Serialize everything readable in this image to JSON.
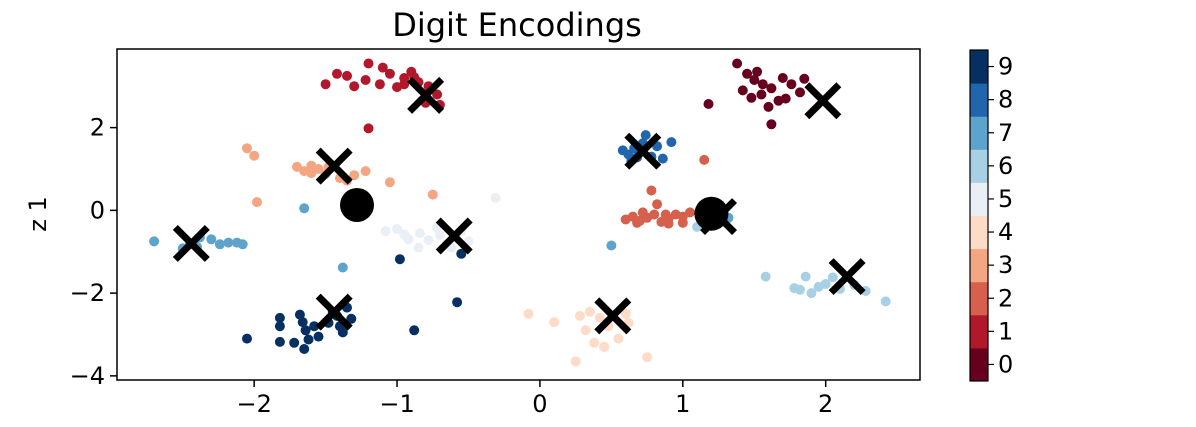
{
  "chart_data": {
    "type": "scatter",
    "title": "Digit Encodings",
    "xlabel": "",
    "ylabel": "z 1",
    "xlim": [
      -2.96,
      2.66
    ],
    "ylim": [
      -4.1,
      3.9
    ],
    "xticks": [
      -2,
      -1,
      0,
      1,
      2
    ],
    "yticks": [
      -4,
      -2,
      0,
      2
    ],
    "grid": false,
    "colorbar": {
      "ticks": [
        0,
        1,
        2,
        3,
        4,
        5,
        6,
        7,
        8,
        9
      ],
      "colors": [
        "#67001f",
        "#b2182b",
        "#d6604d",
        "#f4a582",
        "#fddbc7",
        "#e9eff4",
        "#a8d0e4",
        "#5ea3cc",
        "#2166ac",
        "#053061"
      ]
    },
    "series": [
      {
        "digit": 0,
        "points": [
          [
            1.38,
            3.55
          ],
          [
            1.45,
            3.3
          ],
          [
            1.5,
            3.15
          ],
          [
            1.56,
            3.05
          ],
          [
            1.62,
            2.95
          ],
          [
            1.7,
            3.2
          ],
          [
            1.76,
            3.05
          ],
          [
            1.82,
            2.85
          ],
          [
            1.67,
            2.65
          ],
          [
            1.6,
            2.5
          ],
          [
            1.48,
            2.72
          ],
          [
            1.42,
            2.9
          ],
          [
            1.55,
            2.8
          ],
          [
            1.72,
            2.7
          ],
          [
            1.85,
            3.18
          ],
          [
            1.62,
            2.08
          ],
          [
            1.18,
            2.57
          ],
          [
            1.52,
            3.35
          ]
        ]
      },
      {
        "digit": 1,
        "points": [
          [
            -1.5,
            3.05
          ],
          [
            -1.35,
            3.25
          ],
          [
            -1.2,
            3.55
          ],
          [
            -1.1,
            3.45
          ],
          [
            -1.05,
            3.3
          ],
          [
            -0.95,
            3.2
          ],
          [
            -0.9,
            3.35
          ],
          [
            -0.85,
            3.1
          ],
          [
            -0.78,
            3.0
          ],
          [
            -0.72,
            2.8
          ],
          [
            -0.7,
            2.55
          ],
          [
            -1.22,
            3.15
          ],
          [
            -1.0,
            2.98
          ],
          [
            -0.8,
            2.6
          ],
          [
            -1.42,
            3.3
          ],
          [
            -1.3,
            3.0
          ],
          [
            -1.2,
            1.98
          ],
          [
            -1.12,
            3.05
          ],
          [
            -0.95,
            3.05
          ],
          [
            -0.88,
            3.22
          ]
        ]
      },
      {
        "digit": 2,
        "points": [
          [
            0.6,
            -0.22
          ],
          [
            0.65,
            -0.15
          ],
          [
            0.7,
            -0.25
          ],
          [
            0.75,
            -0.18
          ],
          [
            0.8,
            -0.1
          ],
          [
            0.85,
            -0.28
          ],
          [
            0.9,
            -0.2
          ],
          [
            0.95,
            -0.1
          ],
          [
            1.0,
            -0.15
          ],
          [
            1.05,
            -0.05
          ],
          [
            0.78,
            0.48
          ],
          [
            0.82,
            0.15
          ],
          [
            0.9,
            -0.32
          ],
          [
            1.0,
            -0.3
          ],
          [
            0.72,
            -0.05
          ],
          [
            1.15,
            1.22
          ],
          [
            0.68,
            -0.3
          ],
          [
            0.88,
            -0.1
          ]
        ]
      },
      {
        "digit": 3,
        "points": [
          [
            -2.05,
            1.5
          ],
          [
            -2.0,
            1.32
          ],
          [
            -1.98,
            0.2
          ],
          [
            -1.7,
            1.05
          ],
          [
            -1.65,
            0.95
          ],
          [
            -1.6,
            1.08
          ],
          [
            -1.55,
            1.0
          ],
          [
            -1.5,
            0.88
          ],
          [
            -1.4,
            0.78
          ],
          [
            -1.3,
            0.85
          ],
          [
            -1.22,
            0.95
          ],
          [
            -1.35,
            0.72
          ],
          [
            -1.48,
            1.05
          ],
          [
            -1.05,
            0.68
          ],
          [
            -0.75,
            0.38
          ],
          [
            -1.6,
            0.9
          ]
        ]
      },
      {
        "digit": 4,
        "points": [
          [
            -0.08,
            -2.5
          ],
          [
            0.1,
            -2.7
          ],
          [
            0.25,
            -3.65
          ],
          [
            0.28,
            -2.55
          ],
          [
            0.32,
            -2.9
          ],
          [
            0.38,
            -3.2
          ],
          [
            0.42,
            -2.6
          ],
          [
            0.48,
            -2.8
          ],
          [
            0.55,
            -3.1
          ],
          [
            0.62,
            -2.72
          ],
          [
            0.75,
            -3.55
          ],
          [
            0.35,
            -2.45
          ],
          [
            0.45,
            -3.3
          ],
          [
            0.6,
            -2.5
          ]
        ]
      },
      {
        "digit": 5,
        "points": [
          [
            -1.08,
            -0.5
          ],
          [
            -1.0,
            -0.45
          ],
          [
            -0.92,
            -0.7
          ],
          [
            -0.84,
            -0.55
          ],
          [
            -0.78,
            -0.72
          ],
          [
            -0.7,
            -0.6
          ],
          [
            -0.65,
            -0.8
          ],
          [
            -0.6,
            -0.68
          ],
          [
            -0.55,
            -0.5
          ],
          [
            -0.31,
            0.3
          ],
          [
            -0.72,
            -0.42
          ],
          [
            -0.62,
            -0.9
          ],
          [
            -0.85,
            -0.9
          ],
          [
            -0.5,
            -0.75
          ],
          [
            -0.95,
            -0.58
          ]
        ]
      },
      {
        "digit": 6,
        "points": [
          [
            1.58,
            -1.6
          ],
          [
            1.78,
            -1.88
          ],
          [
            1.82,
            -1.92
          ],
          [
            1.86,
            -1.6
          ],
          [
            1.9,
            -2.0
          ],
          [
            1.95,
            -1.85
          ],
          [
            2.0,
            -1.78
          ],
          [
            2.1,
            -1.9
          ],
          [
            2.2,
            -1.8
          ],
          [
            2.28,
            -1.95
          ],
          [
            2.42,
            -2.2
          ],
          [
            1.1,
            -0.4
          ],
          [
            2.05,
            -1.62
          ]
        ]
      },
      {
        "digit": 7,
        "points": [
          [
            -2.7,
            -0.75
          ],
          [
            -2.5,
            -0.92
          ],
          [
            -2.45,
            -0.82
          ],
          [
            -2.38,
            -0.65
          ],
          [
            -2.3,
            -0.7
          ],
          [
            -2.24,
            -0.82
          ],
          [
            -2.18,
            -0.78
          ],
          [
            -2.12,
            -0.78
          ],
          [
            -2.08,
            -0.82
          ],
          [
            -2.4,
            -0.88
          ],
          [
            -1.38,
            -1.38
          ],
          [
            -1.65,
            0.05
          ],
          [
            0.5,
            -0.85
          ],
          [
            1.32,
            -0.18
          ]
        ]
      },
      {
        "digit": 8,
        "points": [
          [
            0.58,
            1.45
          ],
          [
            0.62,
            1.35
          ],
          [
            0.66,
            1.5
          ],
          [
            0.7,
            1.4
          ],
          [
            0.74,
            1.82
          ],
          [
            0.78,
            1.3
          ],
          [
            0.82,
            1.55
          ],
          [
            0.86,
            1.25
          ],
          [
            0.92,
            1.65
          ],
          [
            0.64,
            1.2
          ],
          [
            0.72,
            1.62
          ],
          [
            0.68,
            1.28
          ]
        ]
      },
      {
        "digit": 9,
        "points": [
          [
            -2.05,
            -3.1
          ],
          [
            -1.82,
            -2.6
          ],
          [
            -1.82,
            -2.8
          ],
          [
            -1.82,
            -3.18
          ],
          [
            -1.72,
            -3.2
          ],
          [
            -1.68,
            -2.52
          ],
          [
            -1.66,
            -2.7
          ],
          [
            -1.64,
            -2.9
          ],
          [
            -1.62,
            -3.12
          ],
          [
            -1.65,
            -3.35
          ],
          [
            -1.58,
            -2.8
          ],
          [
            -1.55,
            -3.05
          ],
          [
            -1.48,
            -2.72
          ],
          [
            -1.45,
            -2.45
          ],
          [
            -1.42,
            -2.55
          ],
          [
            -1.4,
            -2.8
          ],
          [
            -1.38,
            -2.95
          ],
          [
            -1.35,
            -2.35
          ],
          [
            -1.32,
            -2.62
          ],
          [
            -0.98,
            -1.18
          ],
          [
            -0.88,
            -2.9
          ],
          [
            -0.58,
            -2.22
          ],
          [
            -0.55,
            -1.05
          ]
        ]
      }
    ],
    "cross_markers": [
      [
        -0.8,
        2.78
      ],
      [
        1.98,
        2.65
      ],
      [
        -1.44,
        1.07
      ],
      [
        0.72,
        1.43
      ],
      [
        -2.44,
        -0.8
      ],
      [
        -0.6,
        -0.62
      ],
      [
        1.25,
        -0.15
      ],
      [
        2.15,
        -1.6
      ],
      [
        -1.44,
        -2.46
      ],
      [
        0.51,
        -2.55
      ]
    ],
    "circle_markers": [
      [
        -1.28,
        0.13
      ],
      [
        1.2,
        -0.08
      ]
    ]
  }
}
